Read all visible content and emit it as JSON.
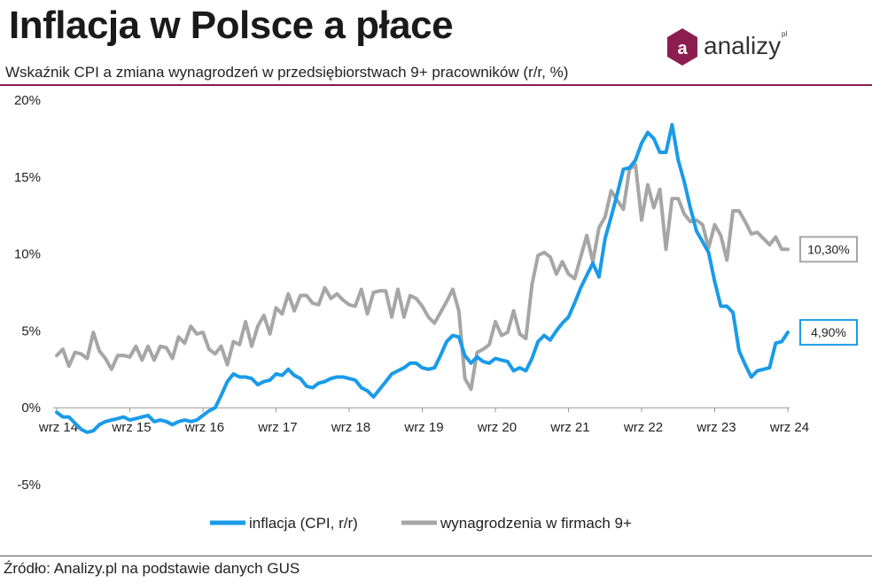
{
  "header": {
    "title": "Inflacja w Polsce a płace",
    "subtitle": "Wskaźnik CPI a zmiana wynagrodzeń w przedsiębiorstwach 9+ pracowników (r/r, %)"
  },
  "logo": {
    "text": "analizy",
    "sup": "pl",
    "mark": "a",
    "color": "#8c1d4f"
  },
  "footer": {
    "source": "Źródło: Analizy.pl na podstawie danych GUS"
  },
  "chart_data": {
    "type": "line",
    "title": "Inflacja w Polsce a płace",
    "ylim": [
      -5,
      20
    ],
    "y_ticks": [
      {
        "value": 20,
        "label": "20%"
      },
      {
        "value": 15,
        "label": "15%"
      },
      {
        "value": 10,
        "label": "10%"
      },
      {
        "value": 5,
        "label": "5%"
      },
      {
        "value": 0,
        "label": "0%"
      },
      {
        "value": -5,
        "label": "-5%"
      }
    ],
    "x_start": "2014-09",
    "x_end": "2024-09",
    "x_ticks": [
      {
        "date": "2014-09",
        "label": "wrz 14"
      },
      {
        "date": "2015-09",
        "label": "wrz 15"
      },
      {
        "date": "2016-09",
        "label": "wrz 16"
      },
      {
        "date": "2017-09",
        "label": "wrz 17"
      },
      {
        "date": "2018-09",
        "label": "wrz 18"
      },
      {
        "date": "2019-09",
        "label": "wrz 19"
      },
      {
        "date": "2020-09",
        "label": "wrz 20"
      },
      {
        "date": "2021-09",
        "label": "wrz 21"
      },
      {
        "date": "2022-09",
        "label": "wrz 22"
      },
      {
        "date": "2023-09",
        "label": "wrz 23"
      },
      {
        "date": "2024-09",
        "label": "wrz 24"
      }
    ],
    "grid": false,
    "legend_position": "bottom",
    "series": [
      {
        "name": "inflacja (CPI, r/r)",
        "color": "#1a9be8",
        "end_label": "4,90%",
        "points": [
          [
            "2014-09",
            -0.3
          ],
          [
            "2014-10",
            -0.6
          ],
          [
            "2014-11",
            -0.6
          ],
          [
            "2014-12",
            -1.0
          ],
          [
            "2015-01",
            -1.4
          ],
          [
            "2015-02",
            -1.6
          ],
          [
            "2015-03",
            -1.5
          ],
          [
            "2015-04",
            -1.1
          ],
          [
            "2015-05",
            -0.9
          ],
          [
            "2015-06",
            -0.8
          ],
          [
            "2015-07",
            -0.7
          ],
          [
            "2015-08",
            -0.6
          ],
          [
            "2015-09",
            -0.8
          ],
          [
            "2015-10",
            -0.7
          ],
          [
            "2015-11",
            -0.6
          ],
          [
            "2015-12",
            -0.5
          ],
          [
            "2016-01",
            -0.9
          ],
          [
            "2016-02",
            -0.8
          ],
          [
            "2016-03",
            -0.9
          ],
          [
            "2016-04",
            -1.1
          ],
          [
            "2016-05",
            -0.9
          ],
          [
            "2016-06",
            -0.8
          ],
          [
            "2016-07",
            -0.9
          ],
          [
            "2016-08",
            -0.8
          ],
          [
            "2016-09",
            -0.5
          ],
          [
            "2016-10",
            -0.2
          ],
          [
            "2016-11",
            0.0
          ],
          [
            "2016-12",
            0.8
          ],
          [
            "2017-01",
            1.7
          ],
          [
            "2017-02",
            2.2
          ],
          [
            "2017-03",
            2.0
          ],
          [
            "2017-04",
            2.0
          ],
          [
            "2017-05",
            1.9
          ],
          [
            "2017-06",
            1.5
          ],
          [
            "2017-07",
            1.7
          ],
          [
            "2017-08",
            1.8
          ],
          [
            "2017-09",
            2.2
          ],
          [
            "2017-10",
            2.1
          ],
          [
            "2017-11",
            2.5
          ],
          [
            "2017-12",
            2.1
          ],
          [
            "2018-01",
            1.9
          ],
          [
            "2018-02",
            1.4
          ],
          [
            "2018-03",
            1.3
          ],
          [
            "2018-04",
            1.6
          ],
          [
            "2018-05",
            1.7
          ],
          [
            "2018-06",
            1.9
          ],
          [
            "2018-07",
            2.0
          ],
          [
            "2018-08",
            2.0
          ],
          [
            "2018-09",
            1.9
          ],
          [
            "2018-10",
            1.8
          ],
          [
            "2018-11",
            1.3
          ],
          [
            "2018-12",
            1.1
          ],
          [
            "2019-01",
            0.7
          ],
          [
            "2019-02",
            1.2
          ],
          [
            "2019-03",
            1.7
          ],
          [
            "2019-04",
            2.2
          ],
          [
            "2019-05",
            2.4
          ],
          [
            "2019-06",
            2.6
          ],
          [
            "2019-07",
            2.9
          ],
          [
            "2019-08",
            2.9
          ],
          [
            "2019-09",
            2.6
          ],
          [
            "2019-10",
            2.5
          ],
          [
            "2019-11",
            2.6
          ],
          [
            "2019-12",
            3.4
          ],
          [
            "2020-01",
            4.3
          ],
          [
            "2020-02",
            4.7
          ],
          [
            "2020-03",
            4.6
          ],
          [
            "2020-04",
            3.4
          ],
          [
            "2020-05",
            2.9
          ],
          [
            "2020-06",
            3.3
          ],
          [
            "2020-07",
            3.0
          ],
          [
            "2020-08",
            2.9
          ],
          [
            "2020-09",
            3.2
          ],
          [
            "2020-10",
            3.1
          ],
          [
            "2020-11",
            3.0
          ],
          [
            "2020-12",
            2.4
          ],
          [
            "2021-01",
            2.6
          ],
          [
            "2021-02",
            2.4
          ],
          [
            "2021-03",
            3.2
          ],
          [
            "2021-04",
            4.3
          ],
          [
            "2021-05",
            4.7
          ],
          [
            "2021-06",
            4.4
          ],
          [
            "2021-07",
            5.0
          ],
          [
            "2021-08",
            5.5
          ],
          [
            "2021-09",
            5.9
          ],
          [
            "2021-10",
            6.8
          ],
          [
            "2021-11",
            7.8
          ],
          [
            "2021-12",
            8.6
          ],
          [
            "2022-01",
            9.4
          ],
          [
            "2022-02",
            8.5
          ],
          [
            "2022-03",
            11.0
          ],
          [
            "2022-04",
            12.4
          ],
          [
            "2022-05",
            13.9
          ],
          [
            "2022-06",
            15.5
          ],
          [
            "2022-07",
            15.6
          ],
          [
            "2022-08",
            16.1
          ],
          [
            "2022-09",
            17.2
          ],
          [
            "2022-10",
            17.9
          ],
          [
            "2022-11",
            17.5
          ],
          [
            "2022-12",
            16.6
          ],
          [
            "2023-01",
            16.6
          ],
          [
            "2023-02",
            18.4
          ],
          [
            "2023-03",
            16.1
          ],
          [
            "2023-04",
            14.7
          ],
          [
            "2023-05",
            13.0
          ],
          [
            "2023-06",
            11.5
          ],
          [
            "2023-07",
            10.8
          ],
          [
            "2023-08",
            10.1
          ],
          [
            "2023-09",
            8.2
          ],
          [
            "2023-10",
            6.6
          ],
          [
            "2023-11",
            6.6
          ],
          [
            "2023-12",
            6.2
          ],
          [
            "2024-01",
            3.7
          ],
          [
            "2024-02",
            2.8
          ],
          [
            "2024-03",
            2.0
          ],
          [
            "2024-04",
            2.4
          ],
          [
            "2024-05",
            2.5
          ],
          [
            "2024-06",
            2.6
          ],
          [
            "2024-07",
            4.2
          ],
          [
            "2024-08",
            4.3
          ],
          [
            "2024-09",
            4.9
          ]
        ]
      },
      {
        "name": "wynagrodzenia w firmach 9+",
        "color": "#a6a6a6",
        "end_label": "10,30%",
        "points": [
          [
            "2014-09",
            3.4
          ],
          [
            "2014-10",
            3.8
          ],
          [
            "2014-11",
            2.7
          ],
          [
            "2014-12",
            3.6
          ],
          [
            "2015-01",
            3.5
          ],
          [
            "2015-02",
            3.2
          ],
          [
            "2015-03",
            4.9
          ],
          [
            "2015-04",
            3.7
          ],
          [
            "2015-05",
            3.2
          ],
          [
            "2015-06",
            2.5
          ],
          [
            "2015-07",
            3.4
          ],
          [
            "2015-08",
            3.4
          ],
          [
            "2015-09",
            3.3
          ],
          [
            "2015-10",
            4.0
          ],
          [
            "2015-11",
            3.1
          ],
          [
            "2015-12",
            4.0
          ],
          [
            "2016-01",
            3.1
          ],
          [
            "2016-02",
            4.0
          ],
          [
            "2016-03",
            3.9
          ],
          [
            "2016-04",
            3.2
          ],
          [
            "2016-05",
            4.6
          ],
          [
            "2016-06",
            4.2
          ],
          [
            "2016-07",
            5.3
          ],
          [
            "2016-08",
            4.8
          ],
          [
            "2016-09",
            4.9
          ],
          [
            "2016-10",
            3.8
          ],
          [
            "2016-11",
            3.5
          ],
          [
            "2016-12",
            4.0
          ],
          [
            "2017-01",
            2.8
          ],
          [
            "2017-02",
            4.3
          ],
          [
            "2017-03",
            4.1
          ],
          [
            "2017-04",
            5.6
          ],
          [
            "2017-05",
            4.0
          ],
          [
            "2017-06",
            5.3
          ],
          [
            "2017-07",
            6.0
          ],
          [
            "2017-08",
            4.8
          ],
          [
            "2017-09",
            6.5
          ],
          [
            "2017-10",
            6.1
          ],
          [
            "2017-11",
            7.4
          ],
          [
            "2017-12",
            6.3
          ],
          [
            "2018-01",
            7.3
          ],
          [
            "2018-02",
            7.3
          ],
          [
            "2018-03",
            6.8
          ],
          [
            "2018-04",
            6.7
          ],
          [
            "2018-05",
            7.8
          ],
          [
            "2018-06",
            7.1
          ],
          [
            "2018-07",
            7.4
          ],
          [
            "2018-08",
            7.0
          ],
          [
            "2018-09",
            6.7
          ],
          [
            "2018-10",
            6.6
          ],
          [
            "2018-11",
            7.7
          ],
          [
            "2018-12",
            6.1
          ],
          [
            "2019-01",
            7.5
          ],
          [
            "2019-02",
            7.6
          ],
          [
            "2019-03",
            7.6
          ],
          [
            "2019-04",
            5.9
          ],
          [
            "2019-05",
            7.7
          ],
          [
            "2019-06",
            5.9
          ],
          [
            "2019-07",
            7.3
          ],
          [
            "2019-08",
            7.1
          ],
          [
            "2019-09",
            6.6
          ],
          [
            "2019-10",
            5.9
          ],
          [
            "2019-11",
            5.5
          ],
          [
            "2019-12",
            6.2
          ],
          [
            "2020-01",
            6.9
          ],
          [
            "2020-02",
            7.7
          ],
          [
            "2020-03",
            6.3
          ],
          [
            "2020-04",
            1.9
          ],
          [
            "2020-05",
            1.2
          ],
          [
            "2020-06",
            3.6
          ],
          [
            "2020-07",
            3.8
          ],
          [
            "2020-08",
            4.1
          ],
          [
            "2020-09",
            5.6
          ],
          [
            "2020-10",
            4.7
          ],
          [
            "2020-11",
            4.9
          ],
          [
            "2020-12",
            6.3
          ],
          [
            "2021-01",
            4.8
          ],
          [
            "2021-02",
            4.5
          ],
          [
            "2021-03",
            8.0
          ],
          [
            "2021-04",
            9.9
          ],
          [
            "2021-05",
            10.1
          ],
          [
            "2021-06",
            9.8
          ],
          [
            "2021-07",
            8.7
          ],
          [
            "2021-08",
            9.5
          ],
          [
            "2021-09",
            8.7
          ],
          [
            "2021-10",
            8.4
          ],
          [
            "2021-11",
            9.8
          ],
          [
            "2021-12",
            11.2
          ],
          [
            "2022-01",
            9.5
          ],
          [
            "2022-02",
            11.7
          ],
          [
            "2022-03",
            12.4
          ],
          [
            "2022-04",
            14.1
          ],
          [
            "2022-05",
            13.5
          ],
          [
            "2022-06",
            12.9
          ],
          [
            "2022-07",
            15.5
          ],
          [
            "2022-08",
            15.8
          ],
          [
            "2022-09",
            12.2
          ],
          [
            "2022-10",
            14.5
          ],
          [
            "2022-11",
            13.0
          ],
          [
            "2022-12",
            14.2
          ],
          [
            "2023-01",
            10.3
          ],
          [
            "2023-02",
            13.6
          ],
          [
            "2023-03",
            13.6
          ],
          [
            "2023-04",
            12.6
          ],
          [
            "2023-05",
            12.1
          ],
          [
            "2023-06",
            12.2
          ],
          [
            "2023-07",
            11.9
          ],
          [
            "2023-08",
            10.4
          ],
          [
            "2023-09",
            11.9
          ],
          [
            "2023-10",
            11.2
          ],
          [
            "2023-11",
            9.6
          ],
          [
            "2023-12",
            12.8
          ],
          [
            "2024-01",
            12.8
          ],
          [
            "2024-02",
            12.1
          ],
          [
            "2024-03",
            11.3
          ],
          [
            "2024-04",
            11.4
          ],
          [
            "2024-05",
            11.0
          ],
          [
            "2024-06",
            10.6
          ],
          [
            "2024-07",
            11.1
          ],
          [
            "2024-08",
            10.3
          ],
          [
            "2024-09",
            10.3
          ]
        ]
      }
    ]
  }
}
